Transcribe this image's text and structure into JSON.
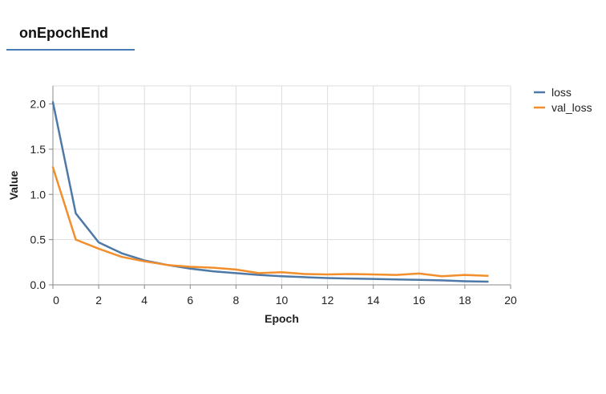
{
  "tab": {
    "label": "onEpochEnd"
  },
  "chart_data": {
    "type": "line",
    "xlabel": "Epoch",
    "ylabel": "Value",
    "xlim": [
      0,
      20
    ],
    "ylim": [
      0,
      2.2
    ],
    "xticks": [
      0,
      2,
      4,
      6,
      8,
      10,
      12,
      14,
      16,
      18,
      20
    ],
    "yticks": [
      0,
      0.5,
      1.0,
      1.5,
      2.0
    ],
    "ytick_labels": [
      "0.0",
      "0.5",
      "1.0",
      "1.5",
      "2.0"
    ],
    "grid": true,
    "legend_position": "top-right",
    "x": [
      0,
      1,
      2,
      3,
      4,
      5,
      6,
      7,
      8,
      9,
      10,
      11,
      12,
      13,
      14,
      15,
      16,
      17,
      18,
      19
    ],
    "series": [
      {
        "name": "loss",
        "color": "#4e79a7",
        "values": [
          2.02,
          0.79,
          0.47,
          0.35,
          0.27,
          0.22,
          0.18,
          0.15,
          0.13,
          0.11,
          0.095,
          0.085,
          0.075,
          0.07,
          0.065,
          0.06,
          0.055,
          0.05,
          0.04,
          0.035
        ]
      },
      {
        "name": "val_loss",
        "color": "#f28e2b",
        "values": [
          1.3,
          0.5,
          0.4,
          0.31,
          0.26,
          0.22,
          0.2,
          0.19,
          0.17,
          0.13,
          0.14,
          0.12,
          0.115,
          0.12,
          0.115,
          0.11,
          0.125,
          0.095,
          0.11,
          0.1
        ]
      }
    ]
  }
}
